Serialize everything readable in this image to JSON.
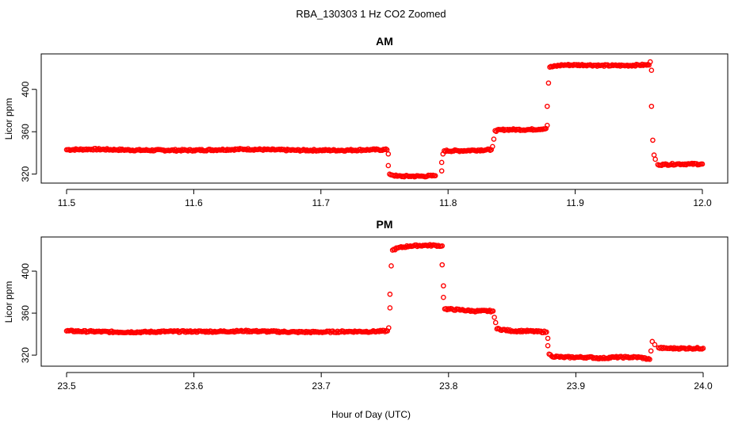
{
  "figure": {
    "title": "RBA_130303  1 Hz CO2 Zoomed",
    "xlabel": "Hour of Day (UTC)",
    "point_color": "#ff0000"
  },
  "chart_data": [
    {
      "type": "scatter",
      "title": "AM",
      "ylabel": "Licor ppm",
      "xlim": [
        11.5,
        12.0
      ],
      "ylim": [
        313,
        432
      ],
      "xticks": [
        11.5,
        11.6,
        11.7,
        11.8,
        11.9,
        12.0
      ],
      "xtick_labels": [
        "11.5",
        "11.6",
        "11.7",
        "11.8",
        "11.9",
        "12.0"
      ],
      "yticks": [
        320,
        360,
        400
      ],
      "ytick_labels": [
        "320",
        "360",
        "400"
      ],
      "series": [
        {
          "color": "#ff0000",
          "points": [
            [
              11.5,
              343
            ],
            [
              11.52,
              343.5
            ],
            [
              11.54,
              343
            ],
            [
              11.56,
              342.5
            ],
            [
              11.58,
              342.5
            ],
            [
              11.6,
              342.5
            ],
            [
              11.62,
              343
            ],
            [
              11.64,
              343.5
            ],
            [
              11.66,
              343
            ],
            [
              11.68,
              342.5
            ],
            [
              11.7,
              342.5
            ],
            [
              11.72,
              342.5
            ],
            [
              11.74,
              343
            ],
            [
              11.752,
              343
            ],
            [
              11.753,
              339
            ],
            [
              11.753,
              328
            ],
            [
              11.754,
              320
            ],
            [
              11.76,
              318
            ],
            [
              11.77,
              318
            ],
            [
              11.78,
              318
            ],
            [
              11.79,
              318.5
            ],
            [
              11.795,
              323
            ],
            [
              11.795,
              331
            ],
            [
              11.796,
              339
            ],
            [
              11.797,
              342
            ],
            [
              11.81,
              342
            ],
            [
              11.82,
              342.5
            ],
            [
              11.834,
              343
            ],
            [
              11.835,
              346
            ],
            [
              11.836,
              353
            ],
            [
              11.837,
              361
            ],
            [
              11.845,
              362
            ],
            [
              11.855,
              362
            ],
            [
              11.865,
              362
            ],
            [
              11.877,
              363
            ],
            [
              11.878,
              366
            ],
            [
              11.878,
              384
            ],
            [
              11.879,
              406
            ],
            [
              11.88,
              421
            ],
            [
              11.89,
              423
            ],
            [
              11.9,
              423
            ],
            [
              11.91,
              423
            ],
            [
              11.92,
              422.5
            ],
            [
              11.93,
              422.5
            ],
            [
              11.94,
              422.5
            ],
            [
              11.95,
              423
            ],
            [
              11.958,
              423
            ],
            [
              11.959,
              426
            ],
            [
              11.96,
              418
            ],
            [
              11.96,
              384
            ],
            [
              11.961,
              352
            ],
            [
              11.962,
              338
            ],
            [
              11.963,
              334
            ],
            [
              11.965,
              329
            ],
            [
              11.97,
              329
            ],
            [
              11.98,
              329.5
            ],
            [
              11.99,
              329.5
            ],
            [
              12.0,
              329.5
            ]
          ]
        }
      ]
    },
    {
      "type": "scatter",
      "title": "PM",
      "ylabel": "Licor ppm",
      "xlim": [
        23.5,
        24.0
      ],
      "ylim": [
        311,
        431
      ],
      "xticks": [
        23.5,
        23.6,
        23.7,
        23.8,
        23.9,
        24.0
      ],
      "xtick_labels": [
        "23.5",
        "23.6",
        "23.7",
        "23.8",
        "23.9",
        "24.0"
      ],
      "yticks": [
        320,
        360,
        400
      ],
      "ytick_labels": [
        "320",
        "360",
        "400"
      ],
      "series": [
        {
          "color": "#ff0000",
          "points": [
            [
              23.5,
              343
            ],
            [
              23.52,
              342.5
            ],
            [
              23.54,
              342
            ],
            [
              23.56,
              342
            ],
            [
              23.58,
              342.5
            ],
            [
              23.6,
              342.5
            ],
            [
              23.62,
              342.5
            ],
            [
              23.64,
              343
            ],
            [
              23.66,
              342.5
            ],
            [
              23.68,
              342
            ],
            [
              23.7,
              342
            ],
            [
              23.72,
              342.5
            ],
            [
              23.74,
              342.5
            ],
            [
              23.752,
              343
            ],
            [
              23.753,
              346
            ],
            [
              23.754,
              365
            ],
            [
              23.754,
              378
            ],
            [
              23.755,
              405
            ],
            [
              23.756,
              420
            ],
            [
              23.76,
              422
            ],
            [
              23.77,
              424
            ],
            [
              23.78,
              424.5
            ],
            [
              23.79,
              424.5
            ],
            [
              23.795,
              424
            ],
            [
              23.795,
              406
            ],
            [
              23.796,
              386
            ],
            [
              23.796,
              375
            ],
            [
              23.797,
              364
            ],
            [
              23.81,
              363
            ],
            [
              23.82,
              362
            ],
            [
              23.835,
              362
            ],
            [
              23.836,
              356
            ],
            [
              23.837,
              351
            ],
            [
              23.838,
              345
            ],
            [
              23.85,
              343
            ],
            [
              23.86,
              343
            ],
            [
              23.877,
              342
            ],
            [
              23.878,
              336
            ],
            [
              23.878,
              329
            ],
            [
              23.879,
              321
            ],
            [
              23.881,
              319
            ],
            [
              23.89,
              318
            ],
            [
              23.9,
              318
            ],
            [
              23.91,
              318
            ],
            [
              23.92,
              317
            ],
            [
              23.93,
              318
            ],
            [
              23.94,
              318
            ],
            [
              23.95,
              318
            ],
            [
              23.958,
              316
            ],
            [
              23.959,
              324
            ],
            [
              23.96,
              333
            ],
            [
              23.962,
              330
            ],
            [
              23.965,
              327
            ],
            [
              23.97,
              326.5
            ],
            [
              23.98,
              326.5
            ],
            [
              23.99,
              326.5
            ],
            [
              24.0,
              326.5
            ]
          ]
        }
      ]
    }
  ]
}
